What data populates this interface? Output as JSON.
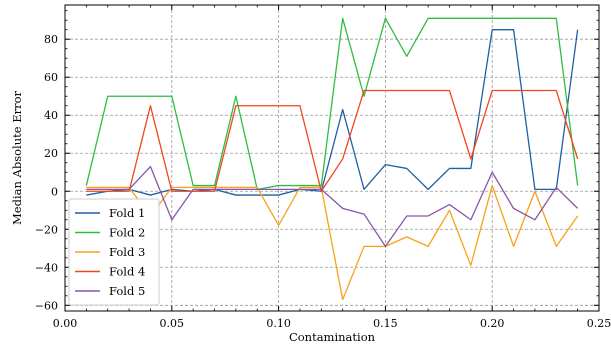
{
  "chart_data": {
    "type": "line",
    "xlabel": "Contamination",
    "ylabel": "Median Absolute Error",
    "xlim": [
      0.0,
      0.25
    ],
    "ylim": [
      -63,
      98
    ],
    "xticks": [
      0.0,
      0.05,
      0.1,
      0.15,
      0.2,
      0.25
    ],
    "xtick_labels": [
      "0.00",
      "0.05",
      "0.10",
      "0.15",
      "0.20",
      "0.25"
    ],
    "yticks": [
      -60,
      -40,
      -20,
      0,
      20,
      40,
      60,
      80
    ],
    "ytick_labels": [
      "−60",
      "−40",
      "−20",
      "0",
      "20",
      "40",
      "60",
      "80"
    ],
    "grid": true,
    "legend_position": "lower-left",
    "x": [
      0.01,
      0.02,
      0.03,
      0.04,
      0.05,
      0.06,
      0.07,
      0.08,
      0.09,
      0.1,
      0.11,
      0.12,
      0.13,
      0.14,
      0.15,
      0.16,
      0.17,
      0.18,
      0.19,
      0.2,
      0.21,
      0.22,
      0.23,
      0.24
    ],
    "series": [
      {
        "name": "Fold 1",
        "color": "#1f5fa6",
        "values": [
          -2,
          0,
          1,
          -2,
          1,
          0,
          1,
          -2,
          -2,
          -2,
          1,
          0,
          43,
          1,
          14,
          12,
          1,
          12,
          12,
          85,
          85,
          1,
          1,
          85
        ]
      },
      {
        "name": "Fold 2",
        "color": "#2ebd43",
        "values": [
          3,
          50,
          50,
          50,
          50,
          3,
          3,
          50,
          1,
          3,
          3,
          3,
          91,
          50,
          91,
          71,
          91,
          91,
          91,
          91,
          91,
          91,
          91,
          3
        ]
      },
      {
        "name": "Fold 3",
        "color": "#f7a21b",
        "values": [
          2,
          2,
          2,
          -13,
          2,
          2,
          2,
          2,
          2,
          -18,
          2,
          2,
          -57,
          -29,
          -29,
          -24,
          -29,
          -10,
          -39,
          3,
          -29,
          0,
          -29,
          -13
        ]
      },
      {
        "name": "Fold 4",
        "color": "#f0461c",
        "values": [
          0,
          0,
          0,
          45,
          0,
          0,
          0,
          45,
          45,
          45,
          45,
          0,
          17,
          53,
          53,
          53,
          53,
          53,
          17,
          53,
          53,
          53,
          53,
          17
        ]
      },
      {
        "name": "Fold 5",
        "color": "#8b55a8",
        "values": [
          1,
          1,
          1,
          13,
          -15,
          1,
          1,
          1,
          1,
          1,
          1,
          1,
          -9,
          -12,
          -29,
          -13,
          -13,
          -7,
          -15,
          10,
          -9,
          -15,
          2,
          -9
        ]
      }
    ]
  }
}
